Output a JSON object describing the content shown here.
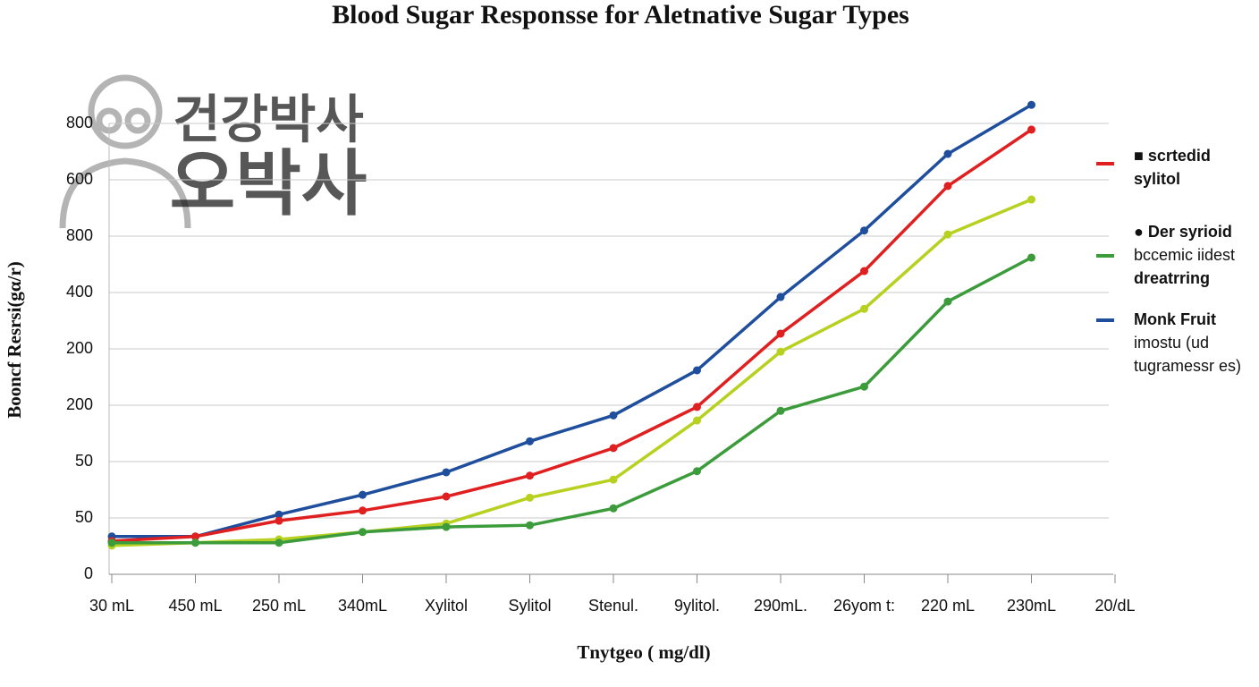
{
  "chart_data": {
    "type": "line",
    "title": "Blood Sugar Responsse for Aletnative Sugar  Types",
    "x_label": "Tnytgeo ( mg/dl)",
    "y_label": "Booncf Resrsi(gα/r)",
    "watermark": [
      "건강박사",
      "오박사"
    ],
    "categories": [
      "30 mL",
      "450 mL",
      "250 mL",
      "340mL",
      "Xylitol",
      "Sylitol",
      "Stenul.",
      "9ylitol.",
      "290mL.",
      "26yom t:",
      "220 mL",
      "230mL",
      "20/dL"
    ],
    "ylim": [
      0,
      800
    ],
    "yticks": [
      0,
      {
        "value": 100,
        "label": "50"
      },
      {
        "value": 200,
        "label": "50"
      },
      {
        "value": 300,
        "label": "200"
      },
      {
        "value": 400,
        "label": "200"
      },
      {
        "value": 500,
        "label": "400"
      },
      {
        "value": 600,
        "label": "800"
      },
      {
        "value": 700,
        "label": "600"
      },
      800
    ],
    "grid": true,
    "series": [
      {
        "color": "#1f4e9c",
        "legend_lines": [
          "Monk Fruit",
          "imostu (ud",
          "tugramessr es)"
        ],
        "values": [
          67,
          67,
          106,
          141,
          181,
          236,
          282,
          362,
          492,
          610,
          746,
          833,
          null
        ]
      },
      {
        "color": "#e02020",
        "legend_lines": [
          "■ scrtedid",
          "sylitol"
        ],
        "values": [
          59,
          67,
          95,
          113,
          138,
          175,
          224,
          297,
          427,
          538,
          689,
          789,
          null
        ]
      },
      {
        "color": "#b8d020",
        "values": [
          51,
          56,
          62,
          75,
          90,
          136,
          168,
          273,
          395,
          471,
          603,
          665,
          null
        ]
      },
      {
        "color": "#3c9c3c",
        "legend_lines": [
          "● Der syrioid",
          "bccemic iidest",
          "dreatrring"
        ],
        "values": [
          56,
          56,
          56,
          75,
          84,
          87,
          117,
          183,
          290,
          333,
          484,
          562,
          null
        ]
      }
    ]
  }
}
